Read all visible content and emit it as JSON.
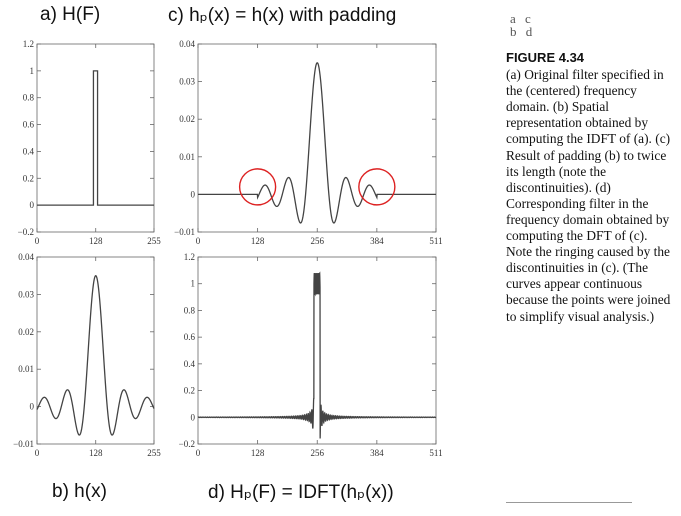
{
  "captions": {
    "a": "a) H(F)",
    "b": "b) h(x)",
    "c": "c) hₚ(x) = h(x) with padding",
    "d": "d) Hₚ(F) = IDFT(hₚ(x))"
  },
  "grid_key": [
    "a c",
    "b d"
  ],
  "figure_label": "FIGURE 4.34",
  "figure_caption": "(a) Original filter specified in the (centered) frequency domain. (b) Spatial representation obtained by computing the IDFT of (a). (c) Result of padding (b) to twice its length (note the discontinuities). (d) Corresponding filter in the frequency domain obtained by computing the DFT of (c). Note the ringing caused by the discontinuities in (c). (The curves appear continuous because the points were joined to simplify visual analysis.)",
  "colors": {
    "curve": "#444444",
    "axis": "#666666",
    "highlight": "#dd2222"
  },
  "chart_data": [
    {
      "id": "a",
      "type": "line",
      "description_model": "ideal lowpass: value 1 for x in [123,132], else 0",
      "x": [
        0,
        123,
        123,
        132,
        132,
        255
      ],
      "y": [
        0,
        0,
        1,
        1,
        0,
        0
      ],
      "xlim": [
        0,
        255
      ],
      "ylim": [
        -0.2,
        1.2
      ],
      "xticks": [
        "0",
        "128",
        "255"
      ],
      "yticks": [
        "−0.2",
        "0",
        "0.2",
        "0.4",
        "0.6",
        "0.8",
        "1",
        "1.2"
      ],
      "grid": false
    },
    {
      "id": "b",
      "type": "line",
      "model": "sinc",
      "center": 128,
      "amplitude": 0.035,
      "period": 25,
      "xlim": [
        0,
        255
      ],
      "ylim": [
        -0.01,
        0.04
      ],
      "xticks": [
        "0",
        "128",
        "255"
      ],
      "yticks": [
        "−0.01",
        "0",
        "0.01",
        "0.02",
        "0.03",
        "0.04"
      ],
      "grid": false
    },
    {
      "id": "c",
      "type": "line",
      "model": "sinc-padded",
      "center": 256,
      "support": [
        128,
        384
      ],
      "amplitude": 0.035,
      "period": 25,
      "xlim": [
        0,
        511
      ],
      "ylim": [
        -0.01,
        0.04
      ],
      "xticks": [
        "0",
        "128",
        "256",
        "384",
        "511"
      ],
      "yticks": [
        "−0.01",
        "0",
        "0.01",
        "0.02",
        "0.03",
        "0.04"
      ],
      "annotations": [
        {
          "type": "circle",
          "x": 128,
          "y": 0.002
        },
        {
          "type": "circle",
          "x": 384,
          "y": 0.002
        }
      ],
      "grid": false
    },
    {
      "id": "d",
      "type": "line",
      "model": "ringing-lowpass",
      "band": [
        249,
        262
      ],
      "level": 1,
      "xlim": [
        0,
        511
      ],
      "ylim": [
        -0.2,
        1.2
      ],
      "xticks": [
        "0",
        "128",
        "256",
        "384",
        "511"
      ],
      "yticks": [
        "−0.2",
        "0",
        "0.2",
        "0.4",
        "0.6",
        "0.8",
        "1",
        "1.2"
      ],
      "grid": false
    }
  ]
}
